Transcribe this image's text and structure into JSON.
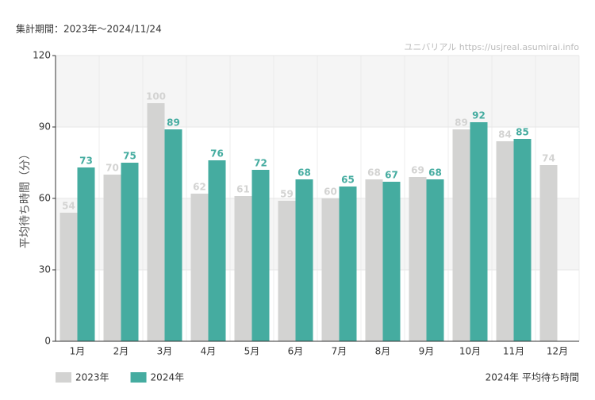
{
  "chart_data": {
    "type": "bar",
    "subtitle": "集計期間：2023年～2024/11/24",
    "source": "ユニバリアル  https://usjreal.asumirai.info",
    "note": "2024年 平均待ち時間",
    "y_label": "平均待ち時間（分）",
    "categories": [
      "1月",
      "2月",
      "3月",
      "4月",
      "5月",
      "6月",
      "7月",
      "8月",
      "9月",
      "10月",
      "11月",
      "12月"
    ],
    "series": [
      {
        "name": "2023年",
        "color": "#d3d3d2",
        "values": [
          54,
          70,
          100,
          62,
          61,
          59,
          60,
          68,
          69,
          89,
          84,
          74
        ]
      },
      {
        "name": "2024年",
        "color": "#45aca0",
        "values": [
          73,
          75,
          89,
          76,
          72,
          68,
          65,
          67,
          68,
          92,
          85,
          null
        ]
      }
    ],
    "ylim": [
      0,
      120
    ],
    "yticks": [
      0,
      30,
      60,
      90,
      120
    ],
    "grid": true,
    "legend": "bottom-left"
  }
}
